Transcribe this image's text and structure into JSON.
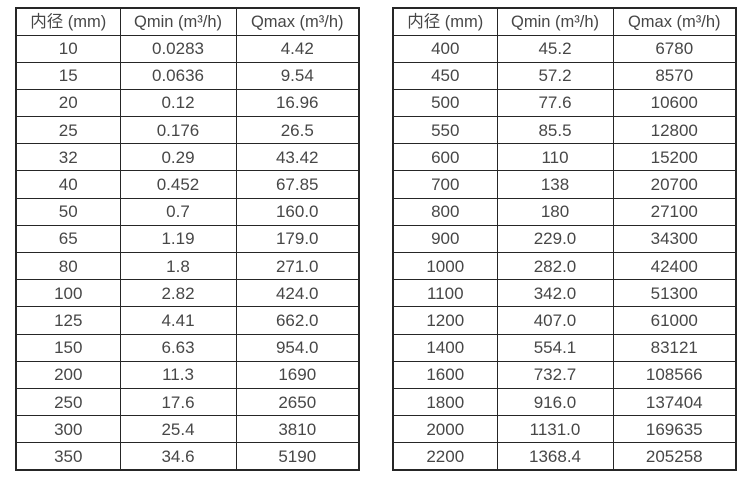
{
  "page": {
    "background": "#ffffff",
    "border_color": "#262626",
    "text_color": "#474747"
  },
  "tables": [
    {
      "id": "flow-table-small-diameters",
      "headers": [
        "内径 (mm)",
        "Qmin (m³/h)",
        "Qmax (m³/h)"
      ],
      "rows": [
        [
          "10",
          "0.0283",
          "4.42"
        ],
        [
          "15",
          "0.0636",
          "9.54"
        ],
        [
          "20",
          "0.12",
          "16.96"
        ],
        [
          "25",
          "0.176",
          "26.5"
        ],
        [
          "32",
          "0.29",
          "43.42"
        ],
        [
          "40",
          "0.452",
          "67.85"
        ],
        [
          "50",
          "0.7",
          "160.0"
        ],
        [
          "65",
          "1.19",
          "179.0"
        ],
        [
          "80",
          "1.8",
          "271.0"
        ],
        [
          "100",
          "2.82",
          "424.0"
        ],
        [
          "125",
          "4.41",
          "662.0"
        ],
        [
          "150",
          "6.63",
          "954.0"
        ],
        [
          "200",
          "11.3",
          "1690"
        ],
        [
          "250",
          "17.6",
          "2650"
        ],
        [
          "300",
          "25.4",
          "3810"
        ],
        [
          "350",
          "34.6",
          "5190"
        ]
      ]
    },
    {
      "id": "flow-table-large-diameters",
      "headers": [
        "内径 (mm)",
        "Qmin (m³/h)",
        "Qmax (m³/h)"
      ],
      "rows": [
        [
          "400",
          "45.2",
          "6780"
        ],
        [
          "450",
          "57.2",
          "8570"
        ],
        [
          "500",
          "77.6",
          "10600"
        ],
        [
          "550",
          "85.5",
          "12800"
        ],
        [
          "600",
          "110",
          "15200"
        ],
        [
          "700",
          "138",
          "20700"
        ],
        [
          "800",
          "180",
          "27100"
        ],
        [
          "900",
          "229.0",
          "34300"
        ],
        [
          "1000",
          "282.0",
          "42400"
        ],
        [
          "1100",
          "342.0",
          "51300"
        ],
        [
          "1200",
          "407.0",
          "61000"
        ],
        [
          "1400",
          "554.1",
          "83121"
        ],
        [
          "1600",
          "732.7",
          "108566"
        ],
        [
          "1800",
          "916.0",
          "137404"
        ],
        [
          "2000",
          "1131.0",
          "169635"
        ],
        [
          "2200",
          "1368.4",
          "205258"
        ]
      ]
    }
  ]
}
